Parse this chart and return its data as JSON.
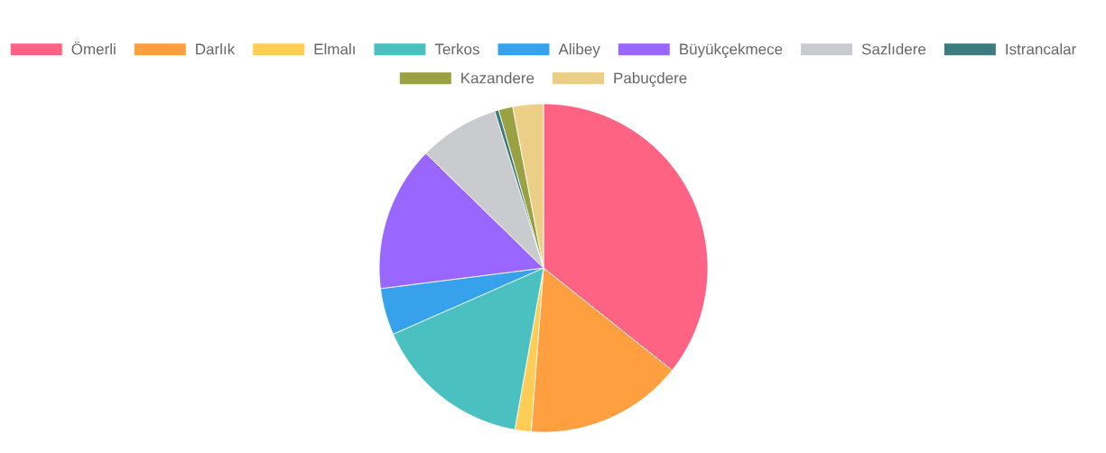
{
  "chart_data": {
    "type": "pie",
    "legend": "top",
    "categories": [
      "Ömerli",
      "Darlık",
      "Elmalı",
      "Terkos",
      "Alibey",
      "Büyükçekmece",
      "Sazlıdere",
      "Istrancalar",
      "Kazandere",
      "Pabuçdere"
    ],
    "values": [
      35.7,
      15.5,
      1.6,
      15.6,
      4.6,
      14.3,
      7.9,
      0.4,
      1.4,
      3.0
    ],
    "colors": [
      "#ff6384",
      "#ff9f40",
      "#ffcd56",
      "#4bc0c0",
      "#36a2eb",
      "#9966ff",
      "#c9cbcf",
      "#3e7b7e",
      "#9aa044",
      "#ebcf87"
    ]
  }
}
